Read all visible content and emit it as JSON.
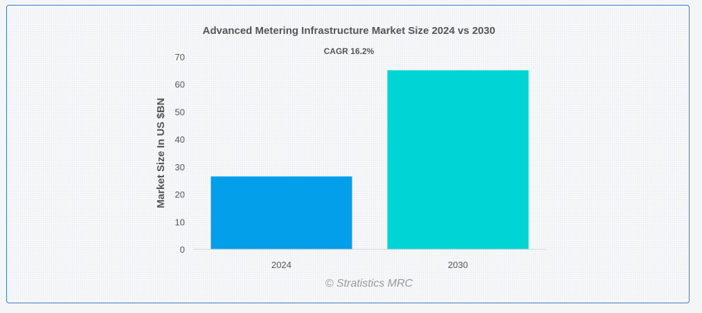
{
  "chart_data": {
    "type": "bar",
    "title": "Advanced Metering Infrastructure Market Size 2024 vs 2030",
    "subtitle": "CAGR 16.2%",
    "xlabel": "",
    "ylabel": "Market Size In US $BN",
    "categories": [
      "2024",
      "2030"
    ],
    "values": [
      26.5,
      65.1
    ],
    "bar_colors": [
      "#039fea",
      "#00d4d4"
    ],
    "ylim": [
      0,
      70
    ],
    "yticks": [
      0,
      10,
      20,
      30,
      40,
      50,
      60,
      70
    ],
    "grid": false,
    "legend": "none"
  },
  "watermark": "© Stratistics MRC"
}
